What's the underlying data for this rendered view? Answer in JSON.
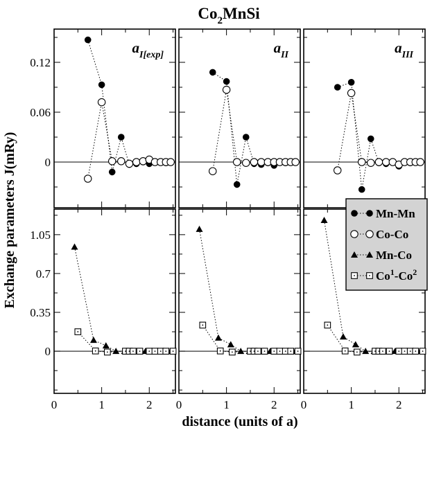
{
  "chart_data": {
    "type": "scatter",
    "title": "Co2MnSi",
    "title_main": "Co",
    "title_sub": "2",
    "title_rest": "MnSi",
    "xlabel": "distance (units of a)",
    "ylabel": "Exchange parameters J(mRy)",
    "xlim": [
      0,
      2.55
    ],
    "x_ticks": [
      0,
      1,
      2
    ],
    "columns": [
      {
        "label_main": "a",
        "label_sub": "I[exp]"
      },
      {
        "label_main": "a",
        "label_sub": "II"
      },
      {
        "label_main": "a",
        "label_sub": "III"
      }
    ],
    "rows": [
      {
        "ylim": [
          -0.055,
          0.16
        ],
        "y_ticks": [
          0,
          0.06,
          0.12
        ],
        "y_tick_labels": [
          "0",
          "0.06",
          "0.12"
        ]
      },
      {
        "ylim": [
          -0.38,
          1.28
        ],
        "y_ticks": [
          0,
          0.35,
          0.7,
          1.05
        ],
        "y_tick_labels": [
          "0",
          "0.35",
          "0.7",
          "1.05"
        ]
      }
    ],
    "legend": {
      "placement": "right",
      "entries": [
        {
          "key": "mnmn",
          "label": "Mn-Mn",
          "marker": "filled-circle"
        },
        {
          "key": "coco",
          "label": "Co-Co",
          "marker": "open-circle"
        },
        {
          "key": "mnco",
          "label": "Mn-Co",
          "marker": "filled-triangle"
        },
        {
          "key": "co1co2",
          "label_parts": [
            "Co",
            "1",
            "-Co",
            "2"
          ],
          "label": "Co1-Co2",
          "marker": "open-square"
        }
      ]
    },
    "panels": [
      {
        "row": 0,
        "col": 0,
        "series": [
          {
            "key": "mnmn",
            "x": [
              0.71,
              1.0,
              1.22,
              1.41,
              1.58,
              1.73,
              1.87,
              2.0,
              2.12,
              2.24,
              2.35,
              2.45
            ],
            "y": [
              0.147,
              0.093,
              -0.012,
              0.03,
              -0.003,
              -0.002,
              0.0,
              -0.002,
              0.0,
              0.0,
              -0.001,
              0.0
            ]
          },
          {
            "key": "coco",
            "x": [
              0.71,
              1.0,
              1.22,
              1.41,
              1.58,
              1.73,
              1.87,
              2.0,
              2.12,
              2.24,
              2.35,
              2.45
            ],
            "y": [
              -0.02,
              0.072,
              0.001,
              0.001,
              -0.002,
              0.0,
              0.001,
              0.003,
              0.0,
              0.0,
              0.0,
              0.0
            ]
          }
        ]
      },
      {
        "row": 0,
        "col": 1,
        "series": [
          {
            "key": "mnmn",
            "x": [
              0.71,
              1.0,
              1.22,
              1.41,
              1.58,
              1.73,
              1.87,
              2.0,
              2.12,
              2.24,
              2.35,
              2.45
            ],
            "y": [
              0.108,
              0.097,
              -0.027,
              0.03,
              -0.002,
              -0.003,
              -0.001,
              -0.004,
              0.0,
              -0.001,
              0.0,
              0.0
            ]
          },
          {
            "key": "coco",
            "x": [
              0.71,
              1.0,
              1.22,
              1.41,
              1.58,
              1.73,
              1.87,
              2.0,
              2.12,
              2.24,
              2.35,
              2.45
            ],
            "y": [
              -0.011,
              0.087,
              0.0,
              -0.001,
              0.0,
              0.0,
              0.0,
              0.0,
              0.0,
              0.0,
              0.0,
              0.0
            ]
          }
        ]
      },
      {
        "row": 0,
        "col": 2,
        "series": [
          {
            "key": "mnmn",
            "x": [
              0.71,
              1.0,
              1.22,
              1.41,
              1.58,
              1.73,
              1.87,
              2.0,
              2.12,
              2.24,
              2.35,
              2.45
            ],
            "y": [
              0.09,
              0.096,
              -0.033,
              0.028,
              -0.001,
              -0.002,
              0.0,
              -0.005,
              0.0,
              -0.001,
              0.0,
              0.0
            ]
          },
          {
            "key": "coco",
            "x": [
              0.71,
              1.0,
              1.22,
              1.41,
              1.58,
              1.73,
              1.87,
              2.0,
              2.12,
              2.24,
              2.35,
              2.45
            ],
            "y": [
              -0.01,
              0.083,
              0.0,
              -0.001,
              0.0,
              0.0,
              0.0,
              -0.003,
              0.0,
              0.0,
              0.0,
              0.0
            ]
          }
        ]
      },
      {
        "row": 1,
        "col": 0,
        "series": [
          {
            "key": "mnco",
            "x": [
              0.43,
              0.83,
              1.09,
              1.3,
              1.48,
              1.64,
              1.79,
              1.92,
              2.05,
              2.17,
              2.29,
              2.4,
              2.5
            ],
            "y": [
              0.94,
              0.1,
              0.05,
              0.0,
              0.0,
              0.0,
              0.0,
              0.0,
              0.0,
              0.0,
              0.0,
              0.0,
              0.0
            ]
          },
          {
            "key": "co1co2",
            "x": [
              0.5,
              0.87,
              1.12,
              1.5,
              1.58,
              1.66,
              1.8,
              2.0,
              2.12,
              2.24,
              2.35,
              2.5
            ],
            "y": [
              0.175,
              0.002,
              -0.008,
              0.0,
              0.0,
              0.0,
              0.0,
              0.0,
              0.0,
              0.0,
              0.0,
              0.0
            ]
          }
        ]
      },
      {
        "row": 1,
        "col": 1,
        "series": [
          {
            "key": "mnco",
            "x": [
              0.43,
              0.83,
              1.09,
              1.3,
              1.48,
              1.64,
              1.79,
              1.92,
              2.05,
              2.17,
              2.29,
              2.4,
              2.5
            ],
            "y": [
              1.1,
              0.12,
              0.06,
              0.0,
              0.0,
              0.0,
              0.0,
              0.0,
              0.0,
              0.0,
              0.0,
              0.0,
              0.0
            ]
          },
          {
            "key": "co1co2",
            "x": [
              0.5,
              0.87,
              1.12,
              1.5,
              1.58,
              1.66,
              1.8,
              2.0,
              2.12,
              2.24,
              2.35,
              2.5
            ],
            "y": [
              0.235,
              0.002,
              -0.008,
              0.0,
              0.0,
              0.0,
              0.0,
              0.0,
              0.0,
              0.0,
              0.0,
              0.0
            ]
          }
        ]
      },
      {
        "row": 1,
        "col": 2,
        "series": [
          {
            "key": "mnco",
            "x": [
              0.43,
              0.83,
              1.09,
              1.3,
              1.48,
              1.64,
              1.79,
              1.92,
              2.05,
              2.17,
              2.29,
              2.4,
              2.5
            ],
            "y": [
              1.18,
              0.13,
              0.06,
              0.0,
              0.0,
              0.0,
              0.0,
              0.0,
              0.0,
              0.0,
              0.0,
              0.0,
              0.0
            ]
          },
          {
            "key": "co1co2",
            "x": [
              0.5,
              0.87,
              1.12,
              1.5,
              1.58,
              1.66,
              1.8,
              2.0,
              2.12,
              2.24,
              2.35,
              2.5
            ],
            "y": [
              0.235,
              0.002,
              -0.008,
              0.0,
              0.0,
              0.0,
              0.0,
              0.0,
              0.0,
              0.0,
              0.0,
              0.0
            ]
          }
        ]
      }
    ]
  }
}
